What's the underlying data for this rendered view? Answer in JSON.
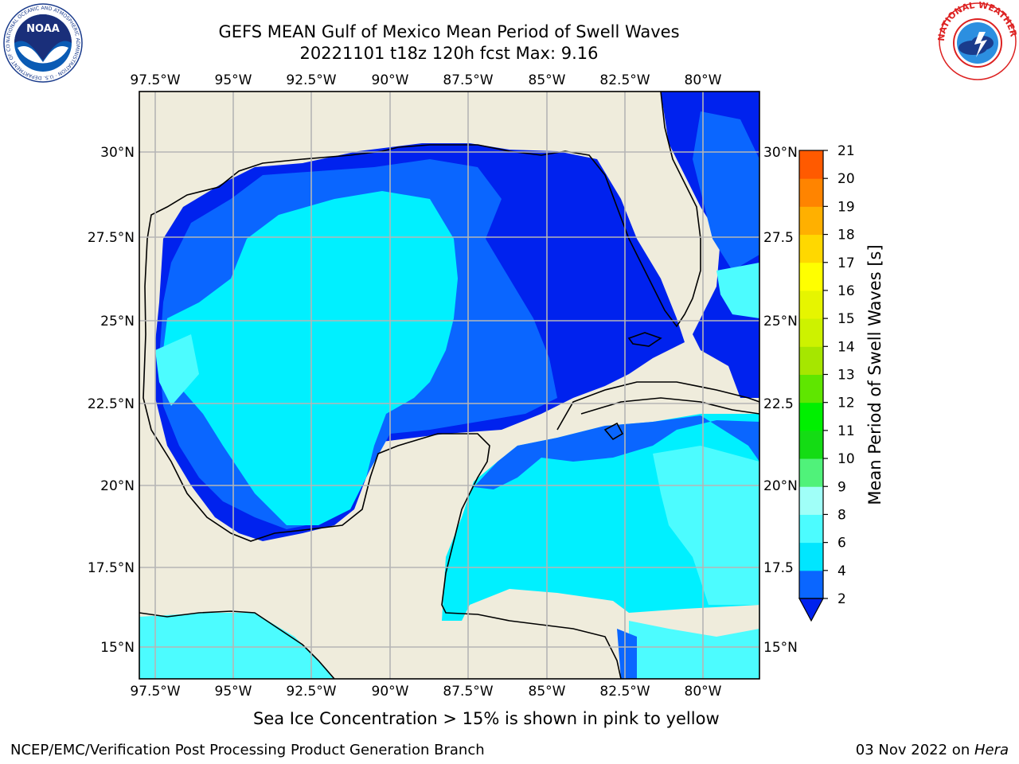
{
  "header": {
    "title_line1": "GEFS MEAN Gulf of Mexico Mean Period of Swell Waves",
    "title_line2": "20221101 t18z 120h fcst   Max: 9.16"
  },
  "logos": {
    "left": "NOAA",
    "left_ring_text": "NATIONAL OCEANIC AND ATMOSPHERIC ADMINISTRATION · U.S. DEPARTMENT OF COMMERCE",
    "right_ring_text": "NATIONAL WEATHER SERVICE"
  },
  "map": {
    "lon_labels": [
      "97.5°W",
      "95°W",
      "92.5°W",
      "90°W",
      "87.5°W",
      "85°W",
      "82.5°W",
      "80°W"
    ],
    "lat_labels": [
      "30°N",
      "27.5°N",
      "25°N",
      "22.5°N",
      "20°N",
      "17.5°N",
      "15°N"
    ],
    "lat_labels_right": [
      "30°N",
      "27.5",
      "25°N",
      "22.5",
      "20°N",
      "17.5",
      "15°N"
    ],
    "land_color": "#efecdc",
    "ice_note": "Sea Ice Concentration > 15% is shown in pink to yellow"
  },
  "colorbar": {
    "label": "Mean Period of Swell Waves [s]",
    "ticks": [
      "2",
      "4",
      "6",
      "8",
      "9",
      "10",
      "11",
      "12",
      "13",
      "14",
      "15",
      "16",
      "17",
      "18",
      "19",
      "20",
      "21"
    ],
    "colors": [
      "#0a66ff",
      "#00e6ff",
      "#4cfcff",
      "#a0fff8",
      "#50f27a",
      "#14dc14",
      "#00f000",
      "#5fe600",
      "#a6e600",
      "#cdf200",
      "#e6f500",
      "#ffff00",
      "#ffd800",
      "#ffb000",
      "#ff8400",
      "#ff5a00",
      "#ff2d00",
      "#ff0000"
    ],
    "extend_color": "#0022ee"
  },
  "footer": {
    "left": "NCEP/EMC/Verification Post Processing Product Generation Branch",
    "date": "03 Nov 2022 on ",
    "host": "Hera"
  }
}
